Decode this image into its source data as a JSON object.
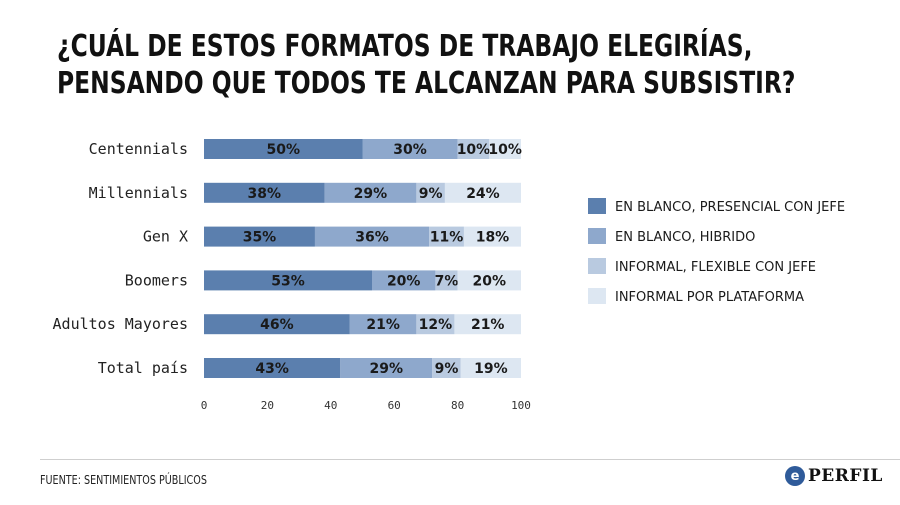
{
  "header": {
    "title_line1": "¿CUÁL DE ESTOS FORMATOS DE TRABAJO ELEGIRÍAS,",
    "title_line2": "PENSANDO QUE TODOS TE ALCANZAN PARA SUBSISTIR?"
  },
  "chart_data": {
    "type": "bar",
    "orientation": "horizontal",
    "stacked": true,
    "categories": [
      "Centennials",
      "Millennials",
      "Gen X",
      "Boomers",
      "Adultos Mayores",
      "Total país"
    ],
    "series": [
      {
        "name": "EN BLANCO, PRESENCIAL CON JEFE",
        "color": "#5b7fae",
        "values": [
          50,
          38,
          35,
          53,
          46,
          43
        ],
        "labels": [
          "50%",
          "38%",
          "35%",
          "53%",
          "46%",
          "43%"
        ]
      },
      {
        "name": "EN BLANCO, HIBRIDO",
        "color": "#8ea8cc",
        "values": [
          30,
          29,
          36,
          20,
          21,
          29
        ],
        "labels": [
          "30%",
          "29%",
          "36%",
          "20%",
          "21%",
          "29%"
        ]
      },
      {
        "name": "INFORMAL, FLEXIBLE CON JEFE",
        "color": "#b9cae0",
        "values": [
          10,
          9,
          11,
          7,
          12,
          9
        ],
        "labels": [
          "10%",
          "9%",
          "11%",
          "7%",
          "12%",
          "9%"
        ]
      },
      {
        "name": "INFORMAL POR PLATAFORMA",
        "color": "#dde7f2",
        "values": [
          10,
          24,
          18,
          20,
          21,
          19
        ],
        "labels": [
          "10%",
          "24%",
          "18%",
          "20%",
          "21%",
          "19%"
        ]
      }
    ],
    "xlim": [
      0,
      100
    ],
    "xticks": [
      "0",
      "20",
      "40",
      "60",
      "80",
      "100"
    ],
    "legend_position": "right",
    "grid": false
  },
  "footer": {
    "source": "FUENTE: SENTIMIENTOS PÚBLICOS",
    "logo_mark": "e",
    "logo_text": "PERFIL"
  }
}
